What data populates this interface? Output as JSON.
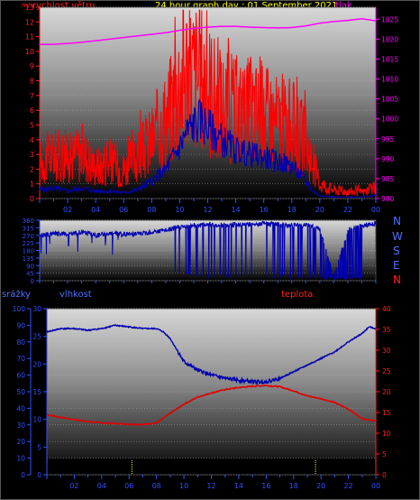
{
  "chart_data": [
    {
      "type": "line",
      "title": "24 hour graph day : 01 September 2021",
      "left_axis_label": "rychlost větru",
      "right_axis_label": "tlak",
      "left_axis_unit": "m/s",
      "left_ylim": [
        0,
        13
      ],
      "left_ticks": [
        "0",
        "1",
        "2",
        "3",
        "4",
        "5",
        "6",
        "7",
        "8",
        "9",
        "10",
        "11",
        "12",
        "13"
      ],
      "right_ylim": [
        980,
        1028
      ],
      "right_ticks": [
        "980",
        "985",
        "990",
        "995",
        "1000",
        "1005",
        "1010",
        "1015",
        "1020",
        "1025"
      ],
      "xlim": [
        0,
        24
      ],
      "x_ticks": [
        "02",
        "04",
        "06",
        "08",
        "10",
        "12",
        "14",
        "16",
        "18",
        "20",
        "22",
        "00"
      ],
      "series": [
        {
          "color": "#ff0000",
          "axis": "left",
          "x": [
            0,
            1,
            2,
            3,
            4,
            5,
            6,
            7,
            8,
            9,
            9.5,
            10,
            10.5,
            11,
            11.5,
            12,
            12.5,
            13,
            14,
            15,
            16,
            17,
            18,
            19,
            19.5,
            20,
            21,
            22,
            23,
            24
          ],
          "y": [
            2.5,
            3.0,
            2.7,
            3.2,
            2.2,
            2.5,
            2.0,
            2.8,
            4.0,
            5.5,
            6.5,
            8.0,
            9.0,
            8.5,
            8.5,
            7.8,
            7.0,
            6.5,
            6.0,
            6.0,
            5.8,
            5.3,
            5.0,
            3.8,
            2.5,
            1.0,
            0.6,
            0.5,
            0.4,
            0.8
          ]
        },
        {
          "color": "#0000b0",
          "axis": "left",
          "x": [
            0,
            1,
            2,
            3,
            4,
            5,
            6,
            7,
            8,
            9,
            10,
            10.5,
            11,
            11.5,
            12,
            13,
            14,
            15,
            16,
            17,
            18,
            19,
            19.5,
            20,
            21,
            22,
            23,
            24
          ],
          "y": [
            0.6,
            0.7,
            0.5,
            0.7,
            0.5,
            0.5,
            0.4,
            0.6,
            1.2,
            2.0,
            3.5,
            4.5,
            5.0,
            5.3,
            4.8,
            4.0,
            3.3,
            3.0,
            2.8,
            2.5,
            2.2,
            1.2,
            0.5,
            0.2,
            0.1,
            0.1,
            0.1,
            0.2
          ]
        },
        {
          "color": "#ff00ff",
          "axis": "right",
          "x": [
            0,
            1,
            2,
            3,
            4,
            5,
            6,
            7,
            8,
            9,
            10,
            11,
            12,
            13,
            14,
            15,
            16,
            17,
            18,
            19,
            20,
            21,
            22,
            23,
            24
          ],
          "y": [
            1018.7,
            1018.7,
            1018.9,
            1019.2,
            1019.6,
            1020.0,
            1020.4,
            1020.8,
            1021.2,
            1021.6,
            1022.2,
            1022.7,
            1023.0,
            1023.2,
            1023.2,
            1023.0,
            1022.9,
            1022.8,
            1022.9,
            1023.3,
            1024.0,
            1024.4,
            1024.7,
            1025.1,
            1024.6
          ]
        }
      ]
    },
    {
      "type": "line",
      "title": "",
      "ylim": [
        0,
        360
      ],
      "y_ticks": [
        "0",
        "45",
        "90",
        "135",
        "180",
        "225",
        "270",
        "315",
        "360"
      ],
      "compass_labels": [
        "N",
        "W",
        "S",
        "E",
        "N"
      ],
      "xlim": [
        0,
        24
      ],
      "series": [
        {
          "color": "#0000b0",
          "x": [
            0,
            1,
            2,
            3,
            4,
            5,
            6,
            7,
            8,
            9,
            10,
            11,
            12,
            13,
            14,
            15,
            16,
            17,
            18,
            19,
            20,
            21,
            22,
            23,
            24
          ],
          "y": [
            270,
            280,
            275,
            290,
            270,
            280,
            275,
            280,
            290,
            300,
            320,
            330,
            335,
            330,
            335,
            335,
            340,
            335,
            330,
            330,
            310,
            20,
            300,
            330,
            340
          ]
        }
      ]
    },
    {
      "type": "line",
      "left_axis_label": "srážky",
      "middle_axis_label": "vlhkost",
      "right_axis_label": "teplota",
      "left_ylim": [
        0,
        100
      ],
      "left_ticks": [
        "0",
        "10",
        "20",
        "30",
        "40",
        "50",
        "60",
        "70",
        "80",
        "90",
        "100"
      ],
      "middle_ylim": [
        0,
        30
      ],
      "middle_ticks": [
        "0",
        "5",
        "10",
        "15",
        "20",
        "25",
        "30"
      ],
      "right_ylim": [
        0,
        40
      ],
      "right_ticks": [
        "0",
        "5",
        "10",
        "15",
        "20",
        "25",
        "30",
        "35",
        "40"
      ],
      "xlim": [
        0,
        24
      ],
      "x_ticks": [
        "02",
        "04",
        "06",
        "08",
        "10",
        "12",
        "14",
        "16",
        "18",
        "20",
        "22",
        "00"
      ],
      "series": [
        {
          "color": "#0000b0",
          "axis": "left",
          "x": [
            0,
            1,
            2,
            3,
            4,
            5,
            6,
            7,
            8,
            8.5,
            9,
            9.5,
            10,
            11,
            12,
            13,
            14,
            15,
            16,
            17,
            18,
            19,
            20,
            21,
            22,
            23,
            23.5,
            24
          ],
          "y": [
            86,
            88,
            88,
            87,
            88,
            90,
            89,
            88,
            88,
            86,
            82,
            75,
            68,
            63,
            60,
            58,
            57,
            56,
            56,
            58,
            62,
            66,
            70,
            74,
            80,
            85,
            89,
            88
          ]
        },
        {
          "color": "#e00000",
          "axis": "right",
          "x": [
            0,
            1,
            2,
            3,
            4,
            5,
            6,
            7,
            8,
            9,
            10,
            11,
            12,
            13,
            14,
            15,
            16,
            17,
            18,
            19,
            20,
            21,
            22,
            23,
            24
          ],
          "y": [
            14.5,
            13.8,
            13.3,
            12.8,
            12.5,
            12.3,
            12.2,
            12.1,
            12.5,
            14.8,
            17.0,
            18.7,
            19.7,
            20.5,
            21.0,
            21.3,
            21.5,
            21.2,
            20.2,
            19.0,
            18.3,
            17.4,
            15.8,
            13.5,
            13.0
          ]
        }
      ],
      "rain_marks_x": [
        6.2,
        19.6
      ]
    }
  ]
}
